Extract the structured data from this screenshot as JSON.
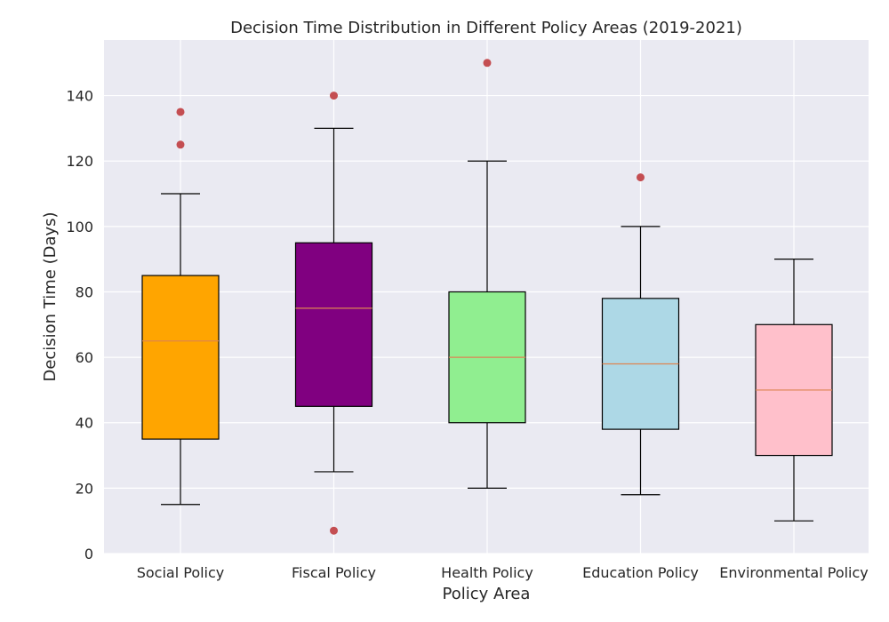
{
  "chart_data": {
    "type": "box",
    "title": "Decision Time Distribution in Different Policy Areas (2019-2021)",
    "xlabel": "Policy Area",
    "ylabel": "Decision Time (Days)",
    "ylim": [
      0,
      157
    ],
    "yticks": [
      0,
      20,
      40,
      60,
      80,
      100,
      120,
      140
    ],
    "grid": true,
    "categories": [
      "Social Policy",
      "Fiscal Policy",
      "Health Policy",
      "Education Policy",
      "Environmental Policy"
    ],
    "boxes": [
      {
        "category": "Social Policy",
        "whisker_low": 15,
        "q1": 35,
        "median": 65,
        "q3": 85,
        "whisker_high": 110,
        "outliers": [
          125,
          135
        ],
        "color": "#ffa500"
      },
      {
        "category": "Fiscal Policy",
        "whisker_low": 25,
        "q1": 45,
        "median": 75,
        "q3": 95,
        "whisker_high": 130,
        "outliers": [
          7,
          140
        ],
        "color": "#800080"
      },
      {
        "category": "Health Policy",
        "whisker_low": 20,
        "q1": 40,
        "median": 60,
        "q3": 80,
        "whisker_high": 120,
        "outliers": [
          150
        ],
        "color": "#90ee90"
      },
      {
        "category": "Education Policy",
        "whisker_low": 18,
        "q1": 38,
        "median": 58,
        "q3": 78,
        "whisker_high": 100,
        "outliers": [
          115
        ],
        "color": "#add8e6"
      },
      {
        "category": "Environmental Policy",
        "whisker_low": 10,
        "q1": 30,
        "median": 50,
        "q3": 70,
        "whisker_high": 90,
        "outliers": [],
        "color": "#ffc0cb"
      }
    ],
    "colors": {
      "background": "#eaeaf2",
      "grid": "#ffffff",
      "median_line": "#dd8452",
      "outlier": "#c44e52",
      "box_edge": "#000000"
    }
  }
}
